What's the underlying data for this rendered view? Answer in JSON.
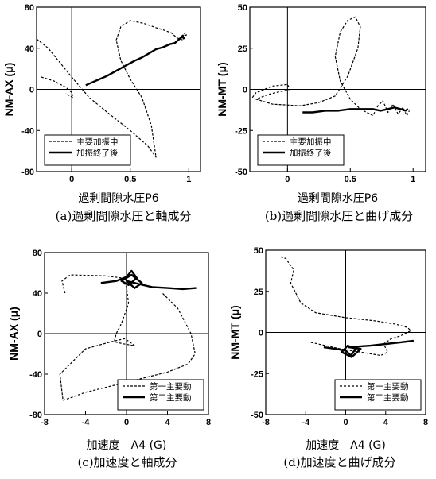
{
  "chart_data": [
    {
      "type": "line",
      "caption": "(a)過剰間隙水圧と軸成分",
      "xlabel": "過剰間隙水圧P6",
      "ylabel": "NM-AX (μ)",
      "xlim": [
        -0.3,
        1.1
      ],
      "ylim": [
        -80,
        80
      ],
      "xticks": [
        0,
        0.5,
        1
      ],
      "xtick_labels": [
        "0",
        "0.5",
        "1"
      ],
      "yticks": [
        -80,
        -40,
        0,
        40,
        80
      ],
      "ytick_labels": [
        "-80",
        "-40",
        "0",
        "40",
        "80"
      ],
      "legend_position": "bottom-left",
      "series": [
        {
          "name": "主要加振中",
          "style": "dashed",
          "x": [
            -0.3,
            -0.2,
            -0.1,
            0.0,
            0.15,
            0.3,
            0.5,
            0.65,
            0.72,
            0.68,
            0.6,
            0.5,
            0.42,
            0.38,
            0.42,
            0.5,
            0.62,
            0.72,
            0.78,
            0.85,
            0.9,
            0.95,
            0.98,
            0.93,
            0.97,
            0.94
          ],
          "y": [
            49,
            40,
            26,
            12,
            -8,
            -22,
            -40,
            -55,
            -66,
            -35,
            -8,
            10,
            28,
            48,
            61,
            67,
            64,
            60,
            58,
            55,
            50,
            48,
            53,
            51,
            55,
            50
          ]
        },
        {
          "name": "",
          "style": "dashed",
          "x": [
            -0.26,
            -0.15,
            -0.05,
            0.0,
            0.01,
            -0.05
          ],
          "y": [
            12,
            8,
            2,
            -3,
            -8,
            -4
          ]
        },
        {
          "name": "加振終了後",
          "style": "solid",
          "x": [
            0.12,
            0.16,
            0.22,
            0.3,
            0.38,
            0.46,
            0.54,
            0.6,
            0.66,
            0.72,
            0.78,
            0.84,
            0.88,
            0.91,
            0.93,
            0.95,
            0.96
          ],
          "y": [
            4,
            6,
            9,
            13,
            18,
            23,
            28,
            31,
            35,
            39,
            41,
            44,
            45,
            48,
            50,
            51,
            49
          ]
        }
      ]
    },
    {
      "type": "line",
      "caption": "(b)過剰間隙水圧と曲げ成分",
      "xlabel": "過剰間隙水圧P6",
      "ylabel": "NM-MT (μ)",
      "xlim": [
        -0.3,
        1.1
      ],
      "ylim": [
        -50,
        50
      ],
      "xticks": [
        0,
        0.5,
        1
      ],
      "xtick_labels": [
        "0",
        "0.5",
        "1"
      ],
      "yticks": [
        -50,
        -25,
        0,
        25,
        50
      ],
      "ytick_labels": [
        "-50",
        "-25",
        "0",
        "25",
        "50"
      ],
      "legend_position": "bottom-left",
      "series": [
        {
          "name": "主要加振中",
          "style": "dashed",
          "x": [
            -0.28,
            -0.25,
            -0.12,
            0.0,
            0.02,
            -0.15,
            -0.25,
            -0.12,
            0.1,
            0.25,
            0.38,
            0.48,
            0.56,
            0.58,
            0.54,
            0.48,
            0.42,
            0.38,
            0.42,
            0.5,
            0.58,
            0.68,
            0.72,
            0.76,
            0.8,
            0.84,
            0.88,
            0.92,
            0.95,
            0.97
          ],
          "y": [
            -5,
            -2,
            2,
            3,
            0,
            -3,
            -6,
            -9,
            -10,
            -8,
            -4,
            8,
            25,
            38,
            44,
            42,
            35,
            20,
            5,
            -6,
            -12,
            -16,
            -10,
            -7,
            -14,
            -9,
            -15,
            -11,
            -16,
            -13
          ]
        },
        {
          "name": "加振終了後",
          "style": "solid",
          "x": [
            0.12,
            0.2,
            0.3,
            0.4,
            0.5,
            0.6,
            0.68,
            0.74,
            0.8,
            0.85,
            0.9,
            0.94,
            0.96
          ],
          "y": [
            -14,
            -14,
            -13,
            -13,
            -12,
            -12,
            -12,
            -13,
            -12,
            -11,
            -12,
            -13,
            -12
          ]
        }
      ]
    },
    {
      "type": "line",
      "caption": "(c)加速度と軸成分",
      "xlabel": "加速度　A4 (G)",
      "ylabel": "NM-AX (μ)",
      "xlim": [
        -8,
        8
      ],
      "ylim": [
        -80,
        80
      ],
      "xticks": [
        -8,
        -4,
        0,
        4,
        8
      ],
      "xtick_labels": [
        "-8",
        "-4",
        "0",
        "4",
        "8"
      ],
      "yticks": [
        -80,
        -40,
        0,
        40,
        80
      ],
      "ytick_labels": [
        "-80",
        "-40",
        "0",
        "40",
        "80"
      ],
      "legend_position": "bottom-right",
      "series": [
        {
          "name": "第一主要動",
          "style": "dashed",
          "x": [
            -6.0,
            -6.3,
            -5.5,
            -2.0,
            -0.5,
            0.0,
            0.2,
            -0.5,
            -1.0,
            -1.2,
            -0.3,
            0.8,
            0.3,
            -0.2,
            -1.5,
            -4.0,
            -6.5,
            -6.2,
            -4.0,
            0.0,
            4.0,
            6.0,
            6.7,
            6.3,
            5.0,
            3.5
          ],
          "y": [
            40,
            52,
            58,
            57,
            55,
            46,
            30,
            10,
            0,
            -8,
            -10,
            -12,
            -8,
            -5,
            -8,
            -15,
            -40,
            -66,
            -58,
            -48,
            -38,
            -30,
            -20,
            0,
            25,
            40
          ]
        },
        {
          "name": "第二主要動",
          "style": "solid",
          "x": [
            -2.5,
            -1.0,
            0.0,
            0.5,
            1.0,
            0.2,
            -0.5,
            0.5,
            1.5,
            0.8,
            0.0,
            1.2,
            2.5,
            4.0,
            5.5,
            6.8
          ],
          "y": [
            50,
            52,
            56,
            62,
            55,
            48,
            52,
            58,
            50,
            45,
            52,
            49,
            46,
            45,
            44,
            45
          ]
        }
      ]
    },
    {
      "type": "line",
      "caption": "(d)加速度と曲げ成分",
      "xlabel": "加速度　A4 (G)",
      "ylabel": "NM-MT (μ)",
      "xlim": [
        -8,
        8
      ],
      "ylim": [
        -50,
        50
      ],
      "xticks": [
        -8,
        -4,
        0,
        4,
        8
      ],
      "xtick_labels": [
        "-8",
        "-4",
        "0",
        "4",
        "8"
      ],
      "yticks": [
        -50,
        -25,
        0,
        25,
        50
      ],
      "ytick_labels": [
        "-50",
        "-25",
        "0",
        "25",
        "50"
      ],
      "legend_position": "bottom-right",
      "series": [
        {
          "name": "第一主要動",
          "style": "dashed",
          "x": [
            -6.5,
            -6.0,
            -5.2,
            -5.5,
            -4.5,
            -3.0,
            0.0,
            3.0,
            5.0,
            6.2,
            6.5,
            5.5,
            4.5,
            3.8,
            4.2,
            3.5,
            1.5,
            -0.5,
            -2.0,
            -3.5
          ],
          "y": [
            46,
            45,
            38,
            30,
            18,
            12,
            9,
            7,
            5,
            3,
            1,
            -2,
            -4,
            -7,
            -12,
            -14,
            -12,
            -10,
            -8,
            -6
          ]
        },
        {
          "name": "第二主要動",
          "style": "solid",
          "x": [
            -2.2,
            -1.0,
            0.0,
            0.5,
            1.0,
            0.2,
            -0.4,
            0.6,
            1.5,
            0.3,
            2.5,
            4.0,
            5.5,
            6.8
          ],
          "y": [
            -9,
            -10,
            -11,
            -14,
            -10,
            -8,
            -12,
            -15,
            -10,
            -9,
            -8,
            -7,
            -6,
            -5
          ]
        }
      ]
    }
  ]
}
